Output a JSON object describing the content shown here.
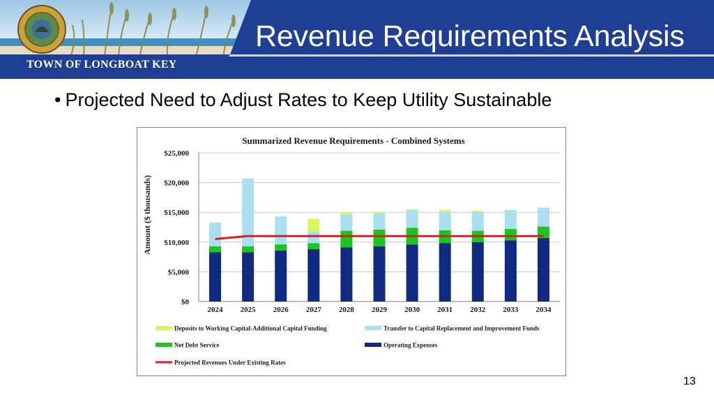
{
  "header": {
    "title": "Revenue Requirements Analysis",
    "town_name": "TOWN OF LONGBOAT KEY",
    "seal_text": "LONGBOAT KEY · INCORPORATED"
  },
  "bullet": {
    "text": "Projected Need to Adjust Rates to Keep Utility Sustainable"
  },
  "page_number": "13",
  "colors": {
    "banner_blue": "#1f3f95",
    "operating_expenses": "#0f2a80",
    "net_debt_service": "#1ec41e",
    "transfer_to_capital": "#a9dff0",
    "deposits_working_capital": "#ddf55c",
    "projected_revenues": "#e01b1b"
  },
  "chart_data": {
    "type": "bar",
    "stacked": true,
    "title": "Summarized Revenue Requirements - Combined Systems",
    "xlabel": "",
    "ylabel": "Amount ($ thousands)",
    "ylim": [
      0,
      25000
    ],
    "yticks": [
      "$0",
      "$5,000",
      "$10,000",
      "$15,000",
      "$20,000",
      "$25,000"
    ],
    "ytick_values": [
      0,
      5000,
      10000,
      15000,
      20000,
      25000
    ],
    "grid": true,
    "legend_position": "bottom",
    "categories": [
      "2024",
      "2025",
      "2026",
      "2027",
      "2028",
      "2029",
      "2030",
      "2031",
      "2032",
      "2033",
      "2034"
    ],
    "series": [
      {
        "name": "Operating Expenses",
        "color": "#0f2a80",
        "values": [
          8300,
          8300,
          8600,
          8800,
          9100,
          9300,
          9600,
          9800,
          10000,
          10300,
          10700
        ]
      },
      {
        "name": "Net Debt Service",
        "color": "#1ec41e",
        "values": [
          1000,
          1000,
          1000,
          1000,
          2800,
          2800,
          2800,
          2200,
          1900,
          1900,
          1900
        ]
      },
      {
        "name": "Transfer to Capital Replacement and Improvement Funds",
        "color": "#a9dff0",
        "values": [
          4000,
          11400,
          4700,
          2000,
          2800,
          2800,
          3000,
          3100,
          3200,
          3200,
          3200
        ]
      },
      {
        "name": "Deposits to Working Capital-Additional Capital Funding",
        "color": "#ddf55c",
        "values": [
          0,
          0,
          0,
          2100,
          300,
          200,
          100,
          300,
          200,
          0,
          0
        ]
      }
    ],
    "line_series": {
      "name": "Projected Revenues Under Existing Rates",
      "color": "#e01b1b",
      "values": [
        10500,
        11000,
        11000,
        11000,
        11000,
        11000,
        11000,
        11000,
        11000,
        11000,
        11000
      ]
    },
    "legend": [
      "Deposits to Working Capital-Additional Capital Funding",
      "Transfer to Capital Replacement and Improvement Funds",
      "Net Debt Service",
      "Operating Expenses",
      "Projected Revenues Under Existing Rates"
    ]
  }
}
